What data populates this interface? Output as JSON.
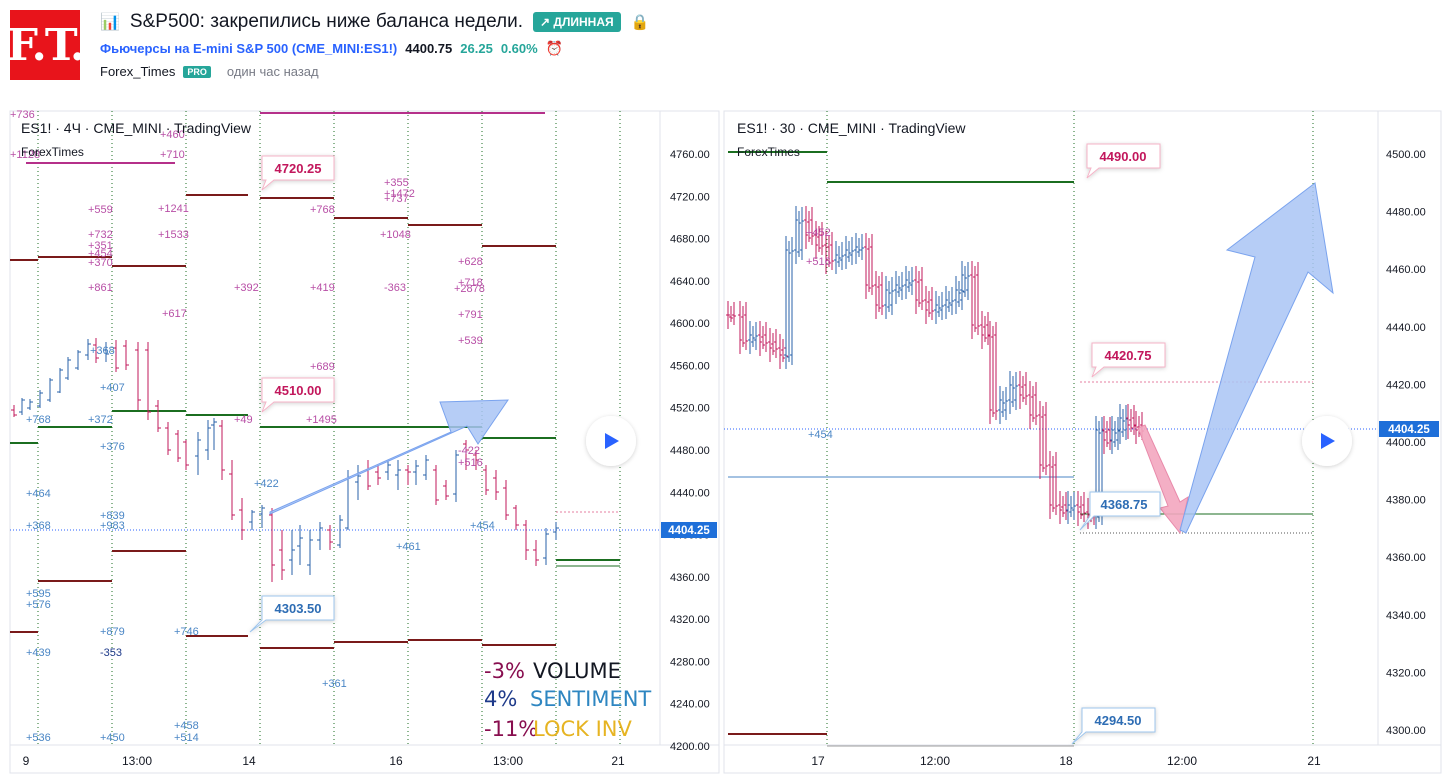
{
  "header": {
    "logo_text": "F.T.",
    "title": "S&P500: закрепились ниже баланса недели.",
    "idea_badge": "↗ ДЛИННАЯ",
    "symbol": {
      "name": "Фьючерсы на E-mini S&P 500",
      "ticker": "(CME_MINI:ES1!)",
      "price": "4400.75",
      "change": "26.25",
      "change_pct": "0.60%"
    },
    "author": "Forex_Times",
    "pro": "PRO",
    "time_ago": "один час назад"
  },
  "left_chart": {
    "title": "ES1! · 4Ч · CME_MINI · TradingView",
    "watermark": "ForexTimes",
    "price_ticks": [
      "4760.00",
      "4720.00",
      "4680.00",
      "4640.00",
      "4600.00",
      "4560.00",
      "4520.00",
      "4480.00",
      "4440.00",
      "4400.00",
      "4360.00",
      "4320.00",
      "4280.00",
      "4240.00",
      "4200.00"
    ],
    "time_ticks": [
      "9",
      "13:00",
      "14",
      "16",
      "13:00",
      "21"
    ],
    "current_price": "4404.25",
    "callouts": [
      "4720.25",
      "4510.00",
      "4303.50"
    ],
    "labels_purple": [
      "+736",
      "+1128",
      "+460",
      "+710",
      "+559",
      "+1241",
      "+732",
      "+351",
      "+454",
      "+370",
      "+1533",
      "+861",
      "+617",
      "+392",
      "+419",
      "-363",
      "+768",
      "+1048",
      "+355",
      "+1472",
      "+737",
      "+628",
      "+718",
      "+2878",
      "+791",
      "+539",
      "+689",
      "+49",
      "+1495",
      "-422",
      "+516"
    ],
    "labels_blue": [
      "+368",
      "+407",
      "+768",
      "+372",
      "+376",
      "+464",
      "+839",
      "+983",
      "+368",
      "+422",
      "+461",
      "+454",
      "+595",
      "+576",
      "+879",
      "+746",
      "-353",
      "+439",
      "+361",
      "+458",
      "+514",
      "+536",
      "+450"
    ],
    "stats": [
      {
        "value": "-3%",
        "label": "VOLUME",
        "value_color": "#880e4f",
        "label_color": "#131722"
      },
      {
        "value": "4%",
        "label": "SENTIMENT",
        "value_color": "#1e3a8a",
        "label_color": "#2e86c1"
      },
      {
        "value": "-11%",
        "label": "LOCK INV",
        "value_color": "#880e4f",
        "label_color": "#e6b422"
      }
    ],
    "play_icon": "play-icon"
  },
  "right_chart": {
    "title": "ES1! · 30 · CME_MINI · TradingView",
    "watermark": "ForexTimes",
    "price_ticks": [
      "4500.00",
      "4480.00",
      "4460.00",
      "4440.00",
      "4420.00",
      "4400.00",
      "4380.00",
      "4360.00",
      "4340.00",
      "4320.00",
      "4300.00"
    ],
    "time_ticks": [
      "17",
      "12:00",
      "18",
      "12:00",
      "21"
    ],
    "current_price": "4404.25",
    "callouts": [
      "4490.00",
      "4420.75",
      "4368.75",
      "4294.50"
    ],
    "labels_purple": [
      "+452",
      "+516"
    ],
    "labels_blue": [
      "+454"
    ],
    "play_icon": "play-icon"
  },
  "colors": {
    "up_candle": "#2962a8",
    "down_candle": "#c2185b",
    "green_line": "#1b6e20",
    "maroon_line": "#7a1a1a",
    "arrow_fill": "#a9c4f5",
    "accent_blue": "#1e6fd9"
  }
}
